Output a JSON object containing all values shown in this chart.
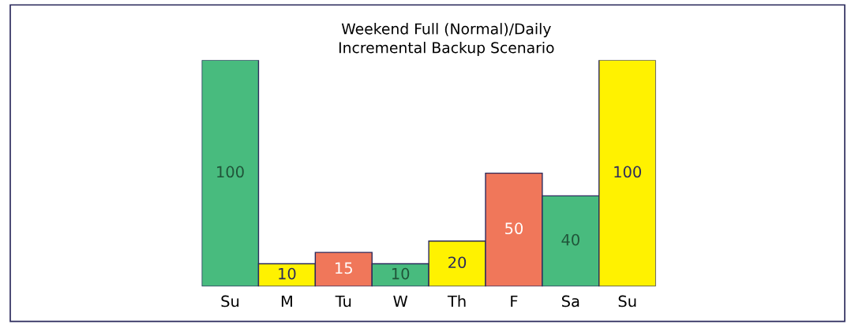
{
  "chart_data": {
    "type": "bar",
    "title": "Weekend Full (Normal)/Daily\nIncremental Backup Scenario",
    "categories": [
      "Su",
      "M",
      "Tu",
      "W",
      "Th",
      "F",
      "Sa",
      "Su"
    ],
    "values": [
      100,
      10,
      15,
      10,
      20,
      50,
      40,
      100
    ],
    "colors": [
      "#48bb7e",
      "#fff200",
      "#f0775a",
      "#48bb7e",
      "#fff200",
      "#f0775a",
      "#48bb7e",
      "#fff200"
    ],
    "data_labels": true,
    "grid": false,
    "legend": false
  }
}
